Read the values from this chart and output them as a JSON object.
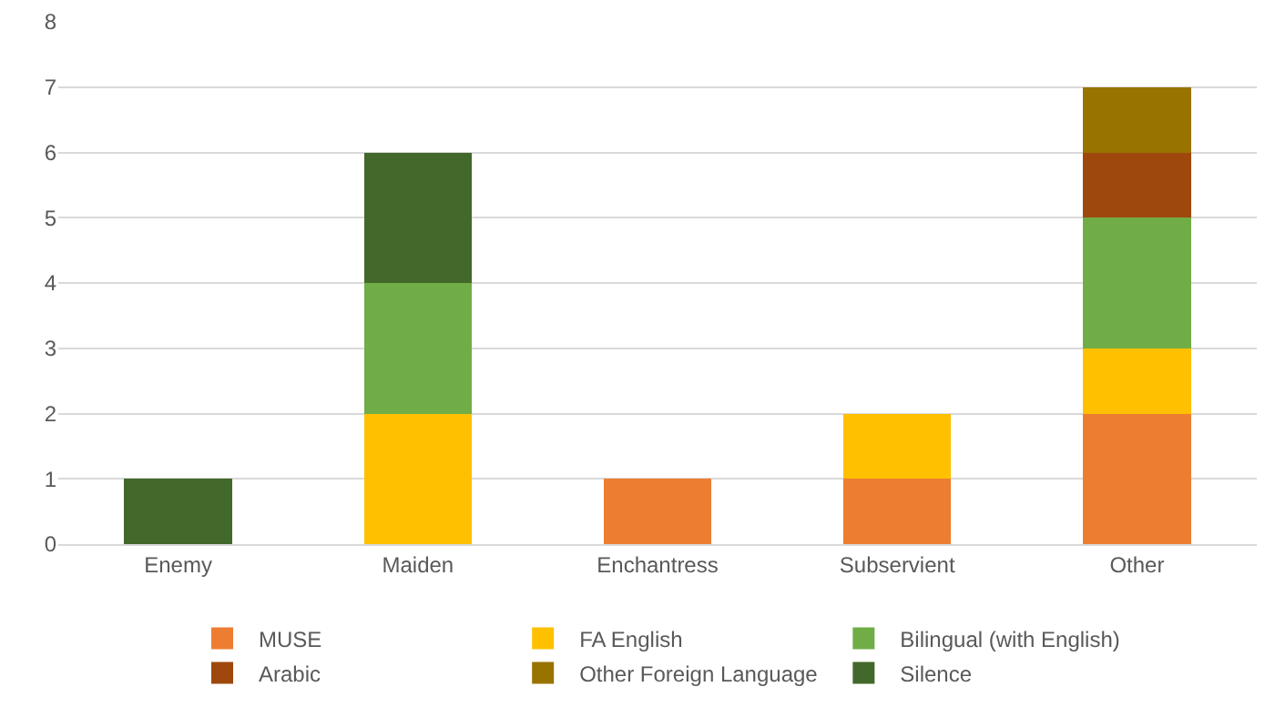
{
  "chart_data": {
    "type": "bar",
    "stacked": true,
    "categories": [
      "Enemy",
      "Maiden",
      "Enchantress",
      "Subservient",
      "Other"
    ],
    "series": [
      {
        "name": "MUSE",
        "color": "#ed7d31",
        "values": [
          0,
          0,
          1,
          1,
          2
        ]
      },
      {
        "name": "FA English",
        "color": "#ffc000",
        "values": [
          0,
          2,
          0,
          1,
          1
        ]
      },
      {
        "name": "Bilingual (with English)",
        "color": "#70ad47",
        "values": [
          0,
          2,
          0,
          0,
          2
        ]
      },
      {
        "name": "Arabic",
        "color": "#9e480e",
        "values": [
          0,
          0,
          0,
          0,
          1
        ]
      },
      {
        "name": "Other Foreign Language",
        "color": "#997300",
        "values": [
          0,
          0,
          0,
          0,
          1
        ]
      },
      {
        "name": "Silence",
        "color": "#43682b",
        "values": [
          1,
          2,
          0,
          0,
          0
        ]
      }
    ],
    "ylim": [
      0,
      8
    ],
    "yticks": [
      0,
      1,
      2,
      3,
      4,
      5,
      6,
      7,
      8
    ],
    "grid": "y",
    "legend": "bottom"
  }
}
